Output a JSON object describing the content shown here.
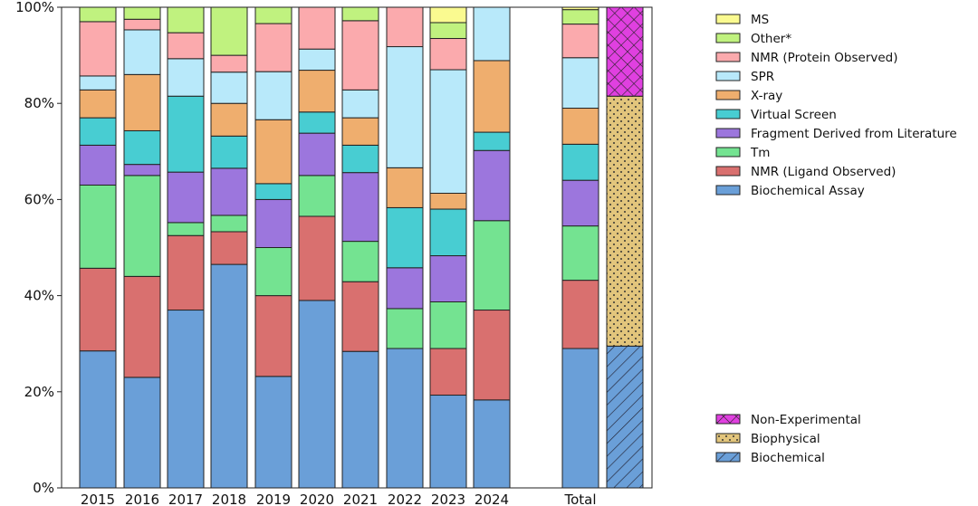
{
  "chart_data": {
    "type": "bar",
    "stacked": true,
    "ylim": [
      0,
      100
    ],
    "yticks": [
      "0%",
      "20%",
      "40%",
      "60%",
      "80%",
      "100%"
    ],
    "categories": [
      "2015",
      "2016",
      "2017",
      "2018",
      "2019",
      "2020",
      "2021",
      "2022",
      "2023",
      "2024",
      "Total"
    ],
    "series": [
      {
        "name": "Biochemical Assay",
        "color": "#6a9fd8",
        "values": [
          28.5,
          23,
          37,
          46.5,
          23.2,
          39,
          28.4,
          29,
          19.3,
          18.3,
          29
        ]
      },
      {
        "name": "NMR (Ligand Observed)",
        "color": "#d9706f",
        "values": [
          17.2,
          21,
          15.5,
          6.8,
          16.8,
          17.5,
          14.5,
          0,
          9.7,
          18.7,
          14.2
        ]
      },
      {
        "name": "Tm",
        "color": "#74e391",
        "values": [
          17.3,
          21,
          2.7,
          3.4,
          10,
          8.5,
          8.4,
          8.3,
          9.7,
          18.6,
          11.3
        ]
      },
      {
        "name": "Fragment Derived from Literature",
        "color": "#9c76dd",
        "values": [
          8.3,
          2.3,
          10.5,
          9.8,
          10,
          8.8,
          14.3,
          8.5,
          9.6,
          14.6,
          9.5
        ]
      },
      {
        "name": "Virtual Screen",
        "color": "#48cdd2",
        "values": [
          5.7,
          7,
          15.8,
          6.7,
          3.3,
          4.4,
          5.7,
          12.5,
          9.7,
          3.8,
          7.5
        ]
      },
      {
        "name": "X-ray",
        "color": "#efae6e",
        "values": [
          5.8,
          11.7,
          0,
          6.8,
          13.3,
          8.7,
          5.7,
          8.3,
          3.3,
          14.9,
          7.5
        ]
      },
      {
        "name": "SPR",
        "color": "#b8e9fa",
        "values": [
          2.9,
          9.3,
          7.8,
          6.5,
          10,
          4.4,
          5.8,
          25.2,
          25.7,
          11.1,
          10.5
        ]
      },
      {
        "name": "NMR (Protein Observed)",
        "color": "#fbaaad",
        "values": [
          11.3,
          2.2,
          5.4,
          3.5,
          10,
          8.7,
          14.4,
          8.2,
          6.5,
          0,
          7
        ]
      },
      {
        "name": "Other*",
        "color": "#c0f27f",
        "values": [
          3,
          2.5,
          5.3,
          10,
          3.4,
          0,
          2.8,
          0,
          3.3,
          0,
          3
        ]
      },
      {
        "name": "MS",
        "color": "#fafa90",
        "values": [
          0,
          0,
          0,
          0,
          0,
          0,
          0,
          0,
          3.2,
          0,
          0.5
        ]
      }
    ],
    "summary_bar": {
      "series": [
        {
          "name": "Biochemical",
          "color": "#6a9fd8",
          "pattern": "diagonal",
          "value": 29.5
        },
        {
          "name": "Biophysical",
          "color": "#e2c57c",
          "pattern": "dots",
          "value": 52
        },
        {
          "name": "Non-Experimental",
          "color": "#e040e0",
          "pattern": "crosshatch",
          "value": 18.5
        }
      ]
    },
    "legend_placement": "right"
  }
}
